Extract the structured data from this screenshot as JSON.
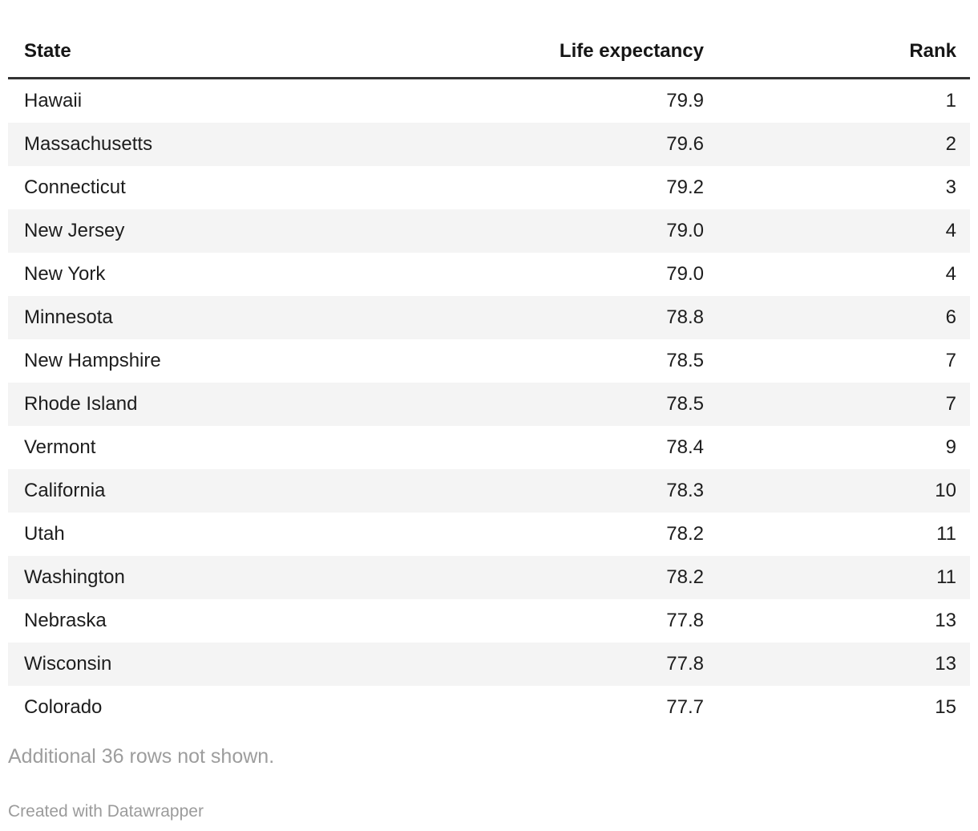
{
  "chart_data": {
    "type": "table",
    "columns": [
      "State",
      "Life expectancy",
      "Rank"
    ],
    "rows": [
      [
        "Hawaii",
        "79.9",
        "1"
      ],
      [
        "Massachusetts",
        "79.6",
        "2"
      ],
      [
        "Connecticut",
        "79.2",
        "3"
      ],
      [
        "New Jersey",
        "79.0",
        "4"
      ],
      [
        "New York",
        "79.0",
        "4"
      ],
      [
        "Minnesota",
        "78.8",
        "6"
      ],
      [
        "New Hampshire",
        "78.5",
        "7"
      ],
      [
        "Rhode Island",
        "78.5",
        "7"
      ],
      [
        "Vermont",
        "78.4",
        "9"
      ],
      [
        "California",
        "78.3",
        "10"
      ],
      [
        "Utah",
        "78.2",
        "11"
      ],
      [
        "Washington",
        "78.2",
        "11"
      ],
      [
        "Nebraska",
        "77.8",
        "13"
      ],
      [
        "Wisconsin",
        "77.8",
        "13"
      ],
      [
        "Colorado",
        "77.7",
        "15"
      ]
    ],
    "note": "Additional 36 rows not shown.",
    "attribution": "Created with Datawrapper",
    "layout": {
      "zebra_striping": true,
      "header_rule": true,
      "numeric_columns_right_aligned": true
    }
  },
  "colors": {
    "text": "#1d1d1d",
    "header_text": "#161616",
    "header_rule": "#333333",
    "zebra_row": "#f4f4f4",
    "note_text": "#9d9d9d",
    "attribution_text": "#9b9b9b",
    "background": "#ffffff"
  }
}
